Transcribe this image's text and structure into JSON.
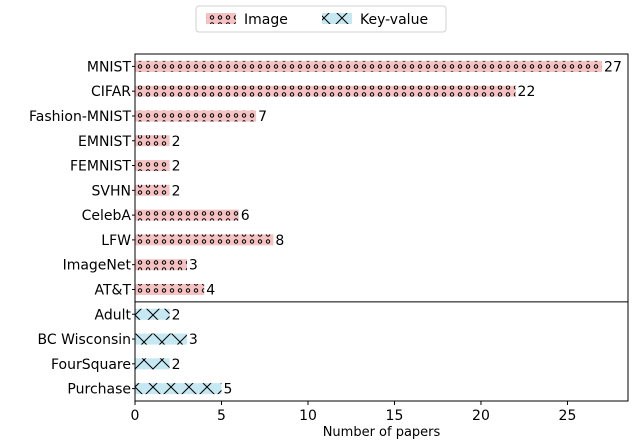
{
  "chart_data": {
    "type": "bar",
    "orientation": "horizontal",
    "xlabel": "Number of papers",
    "ylabel": "",
    "xlim": [
      0,
      28.5
    ],
    "xticks": [
      0,
      5,
      10,
      15,
      20,
      25
    ],
    "legend": {
      "placement": "top-center",
      "entries": [
        {
          "name": "Image",
          "color": "#f4c2c2",
          "pattern": "circles"
        },
        {
          "name": "Key-value",
          "color": "#c6e8f2",
          "pattern": "crosses"
        }
      ]
    },
    "groups": [
      {
        "series": "Image",
        "bars": [
          {
            "label": "MNIST",
            "value": 27
          },
          {
            "label": "CIFAR",
            "value": 22
          },
          {
            "label": "Fashion-MNIST",
            "value": 7
          },
          {
            "label": "EMNIST",
            "value": 2
          },
          {
            "label": "FEMNIST",
            "value": 2
          },
          {
            "label": "SVHN",
            "value": 2
          },
          {
            "label": "CelebA",
            "value": 6
          },
          {
            "label": "LFW",
            "value": 8
          },
          {
            "label": "ImageNet",
            "value": 3
          },
          {
            "label": "AT&T",
            "value": 4
          }
        ]
      },
      {
        "series": "Key-value",
        "bars": [
          {
            "label": "Adult",
            "value": 2
          },
          {
            "label": "BC Wisconsin",
            "value": 3
          },
          {
            "label": "FourSquare",
            "value": 2
          },
          {
            "label": "Purchase",
            "value": 5
          }
        ]
      }
    ]
  }
}
